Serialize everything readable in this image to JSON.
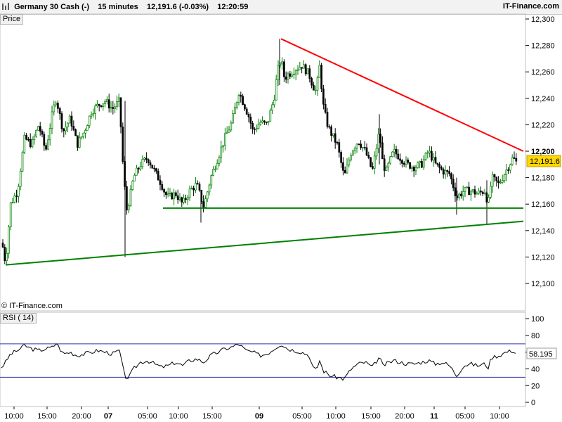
{
  "header": {
    "instrument": "Germany 30 Cash (-)",
    "interval": "15 minutes",
    "price_change": "12,191.6 (-0.03%)",
    "time": "12:20:59",
    "brand": "IT-Finance.com"
  },
  "price_panel": {
    "label": "Price",
    "watermark": "© IT-Finance.com",
    "last_price_tag": "12,191.6",
    "y_ticks": [
      "12,300",
      "12,280",
      "12,260",
      "12,240",
      "12,220",
      "12,200",
      "12,180",
      "12,160",
      "12,140",
      "12,120",
      "12,100"
    ],
    "colors": {
      "up": "#008000",
      "down": "#000000",
      "resistance": "#ff0000",
      "support": "#008000",
      "tag_bg": "#ffd700"
    }
  },
  "rsi_panel": {
    "label": "RSI ( 14)",
    "value_tag": "58.195",
    "y_ticks": [
      "100",
      "80",
      "60",
      "40",
      "20",
      "0"
    ],
    "levels": [
      70,
      30
    ]
  },
  "x_axis": {
    "ticks": [
      "10:00",
      "15:00",
      "20:00",
      "07",
      "05:00",
      "10:00",
      "15:00",
      "09",
      "05:00",
      "10:00",
      "15:00",
      "20:00",
      "11",
      "05:00",
      "10:00"
    ],
    "bold": [
      false,
      false,
      false,
      true,
      false,
      false,
      false,
      true,
      false,
      false,
      false,
      false,
      true,
      false,
      false
    ]
  },
  "chart_data": {
    "type": "candlestick",
    "title": "Germany 30 Cash (-)",
    "interval": "15 minutes",
    "ylim": [
      12090,
      12305
    ],
    "close_path": [
      [
        0,
        12140
      ],
      [
        8,
        12115
      ],
      [
        15,
        12160
      ],
      [
        25,
        12170
      ],
      [
        35,
        12210
      ],
      [
        45,
        12205
      ],
      [
        55,
        12220
      ],
      [
        65,
        12200
      ],
      [
        75,
        12230
      ],
      [
        80,
        12240
      ],
      [
        90,
        12215
      ],
      [
        100,
        12225
      ],
      [
        110,
        12205
      ],
      [
        120,
        12215
      ],
      [
        130,
        12230
      ],
      [
        140,
        12235
      ],
      [
        150,
        12238
      ],
      [
        160,
        12232
      ],
      [
        170,
        12238
      ],
      [
        175,
        12190
      ],
      [
        180,
        12155
      ],
      [
        185,
        12165
      ],
      [
        190,
        12180
      ],
      [
        200,
        12190
      ],
      [
        210,
        12195
      ],
      [
        220,
        12185
      ],
      [
        230,
        12175
      ],
      [
        235,
        12168
      ],
      [
        240,
        12165
      ],
      [
        250,
        12168
      ],
      [
        260,
        12160
      ],
      [
        270,
        12170
      ],
      [
        280,
        12175
      ],
      [
        290,
        12158
      ],
      [
        300,
        12180
      ],
      [
        310,
        12195
      ],
      [
        320,
        12210
      ],
      [
        330,
        12222
      ],
      [
        340,
        12245
      ],
      [
        350,
        12232
      ],
      [
        355,
        12225
      ],
      [
        360,
        12215
      ],
      [
        370,
        12222
      ],
      [
        380,
        12220
      ],
      [
        385,
        12230
      ],
      [
        390,
        12240
      ],
      [
        395,
        12260
      ],
      [
        400,
        12270
      ],
      [
        405,
        12255
      ],
      [
        410,
        12258
      ],
      [
        420,
        12262
      ],
      [
        430,
        12265
      ],
      [
        440,
        12258
      ],
      [
        445,
        12250
      ],
      [
        450,
        12245
      ],
      [
        455,
        12265
      ],
      [
        460,
        12235
      ],
      [
        465,
        12222
      ],
      [
        470,
        12215
      ],
      [
        480,
        12205
      ],
      [
        490,
        12180
      ],
      [
        500,
        12200
      ],
      [
        510,
        12208
      ],
      [
        520,
        12200
      ],
      [
        530,
        12185
      ],
      [
        540,
        12215
      ],
      [
        545,
        12190
      ],
      [
        550,
        12185
      ],
      [
        560,
        12200
      ],
      [
        570,
        12195
      ],
      [
        580,
        12190
      ],
      [
        590,
        12188
      ],
      [
        600,
        12190
      ],
      [
        610,
        12200
      ],
      [
        620,
        12190
      ],
      [
        630,
        12185
      ],
      [
        640,
        12183
      ],
      [
        650,
        12165
      ],
      [
        660,
        12170
      ],
      [
        670,
        12170
      ],
      [
        680,
        12168
      ],
      [
        690,
        12170
      ],
      [
        695,
        12160
      ],
      [
        700,
        12180
      ],
      [
        710,
        12175
      ],
      [
        720,
        12185
      ],
      [
        730,
        12195
      ],
      [
        735,
        12191.6
      ]
    ],
    "trendlines": [
      {
        "name": "resistance",
        "color": "#ff0000",
        "from": [
          400,
          12285
        ],
        "to": [
          745,
          12200
        ]
      },
      {
        "name": "support",
        "color": "#008000",
        "from": [
          8,
          12114
        ],
        "to": [
          745,
          12147
        ]
      },
      {
        "name": "horizontal-support",
        "color": "#008000",
        "from": [
          232,
          12157
        ],
        "to": [
          745,
          12157
        ]
      }
    ],
    "rsi": {
      "period": 14,
      "ylim": [
        0,
        100
      ],
      "levels": [
        70,
        30
      ],
      "path": [
        [
          0,
          40
        ],
        [
          8,
          48
        ],
        [
          15,
          58
        ],
        [
          25,
          62
        ],
        [
          35,
          68
        ],
        [
          45,
          64
        ],
        [
          55,
          62
        ],
        [
          65,
          64
        ],
        [
          75,
          66
        ],
        [
          80,
          71
        ],
        [
          90,
          58
        ],
        [
          100,
          60
        ],
        [
          110,
          56
        ],
        [
          120,
          58
        ],
        [
          130,
          60
        ],
        [
          140,
          62
        ],
        [
          150,
          60
        ],
        [
          160,
          58
        ],
        [
          170,
          62
        ],
        [
          175,
          40
        ],
        [
          180,
          28
        ],
        [
          185,
          32
        ],
        [
          190,
          40
        ],
        [
          200,
          48
        ],
        [
          210,
          50
        ],
        [
          220,
          46
        ],
        [
          230,
          42
        ],
        [
          240,
          44
        ],
        [
          250,
          48
        ],
        [
          260,
          44
        ],
        [
          270,
          50
        ],
        [
          280,
          52
        ],
        [
          290,
          48
        ],
        [
          300,
          56
        ],
        [
          310,
          60
        ],
        [
          320,
          64
        ],
        [
          330,
          66
        ],
        [
          340,
          70
        ],
        [
          350,
          62
        ],
        [
          360,
          60
        ],
        [
          370,
          56
        ],
        [
          380,
          58
        ],
        [
          390,
          64
        ],
        [
          400,
          70
        ],
        [
          410,
          64
        ],
        [
          420,
          62
        ],
        [
          430,
          60
        ],
        [
          440,
          56
        ],
        [
          445,
          42
        ],
        [
          450,
          38
        ],
        [
          455,
          50
        ],
        [
          460,
          38
        ],
        [
          470,
          32
        ],
        [
          480,
          30
        ],
        [
          490,
          28
        ],
        [
          500,
          40
        ],
        [
          510,
          46
        ],
        [
          520,
          48
        ],
        [
          530,
          42
        ],
        [
          540,
          54
        ],
        [
          545,
          44
        ],
        [
          550,
          46
        ],
        [
          560,
          50
        ],
        [
          570,
          48
        ],
        [
          580,
          46
        ],
        [
          590,
          46
        ],
        [
          600,
          48
        ],
        [
          610,
          50
        ],
        [
          620,
          46
        ],
        [
          630,
          48
        ],
        [
          640,
          44
        ],
        [
          650,
          32
        ],
        [
          660,
          44
        ],
        [
          670,
          46
        ],
        [
          680,
          44
        ],
        [
          690,
          46
        ],
        [
          695,
          42
        ],
        [
          700,
          54
        ],
        [
          710,
          56
        ],
        [
          720,
          60
        ],
        [
          730,
          62
        ],
        [
          735,
          58.195
        ]
      ]
    }
  }
}
